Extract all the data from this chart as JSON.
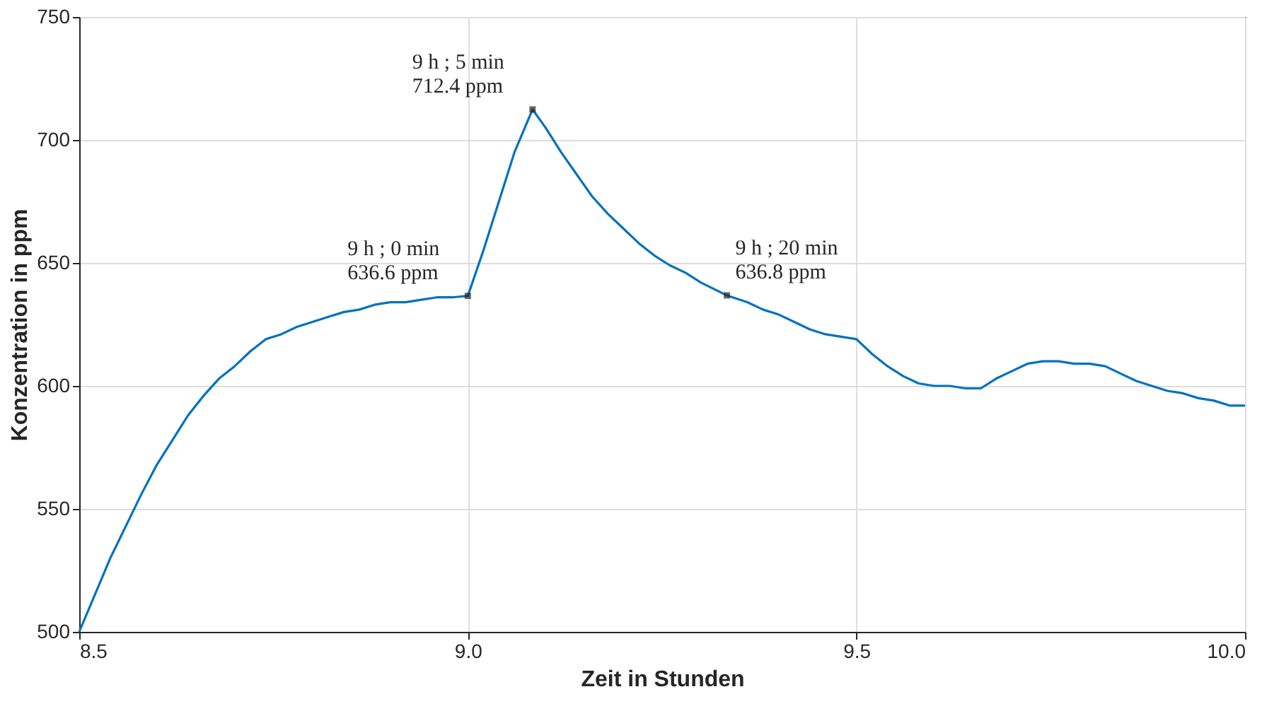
{
  "chart_data": {
    "type": "line",
    "xlabel": "Zeit in Stunden",
    "ylabel": "Konzentration in ppm",
    "x": [
      8.5,
      8.52,
      8.54,
      8.56,
      8.58,
      8.6,
      8.62,
      8.64,
      8.66,
      8.68,
      8.7,
      8.72,
      8.74,
      8.76,
      8.78,
      8.8,
      8.82,
      8.84,
      8.86,
      8.88,
      8.9,
      8.92,
      8.94,
      8.96,
      8.98,
      9.0,
      9.02,
      9.04,
      9.06,
      9.0833,
      9.1,
      9.12,
      9.14,
      9.16,
      9.18,
      9.2,
      9.22,
      9.24,
      9.26,
      9.28,
      9.3,
      9.3333,
      9.36,
      9.38,
      9.4,
      9.42,
      9.44,
      9.46,
      9.5,
      9.52,
      9.54,
      9.56,
      9.58,
      9.6,
      9.62,
      9.64,
      9.66,
      9.68,
      9.7,
      9.72,
      9.74,
      9.76,
      9.78,
      9.8,
      9.82,
      9.84,
      9.86,
      9.88,
      9.9,
      9.92,
      9.94,
      9.96,
      9.98,
      10.0
    ],
    "series": [
      {
        "color": "#0072bd",
        "values": [
          500,
          515,
          530,
          543,
          556,
          568,
          578,
          588,
          596,
          603,
          608,
          614,
          619,
          621,
          624,
          626,
          628,
          630,
          631,
          633,
          634,
          634,
          635,
          636,
          636,
          636.6,
          655,
          675,
          695,
          712.4,
          705,
          695,
          686,
          677,
          670,
          664,
          658,
          653,
          649,
          646,
          642,
          636.8,
          634,
          631,
          629,
          626,
          623,
          621,
          619,
          613,
          608,
          604,
          601,
          600,
          600,
          599,
          599,
          603,
          606,
          609,
          610,
          610,
          609,
          609,
          608,
          605,
          602,
          600,
          598,
          597,
          595,
          594,
          592,
          592
        ]
      }
    ],
    "xlim": [
      8.5,
      10
    ],
    "ylim": [
      500,
      750
    ],
    "xticks": [
      8.5,
      {
        "value": 9,
        "label": "9.0"
      },
      9.5,
      {
        "value": 10,
        "label": "10.0"
      }
    ],
    "yticks": [
      500,
      550,
      600,
      650,
      700,
      750
    ],
    "grid": true,
    "line_style": "solid",
    "marker": "none",
    "annotations": [
      {
        "text": "9 h ; 0 min\n636.6 ppm",
        "x": 9.0,
        "y": 636.6
      },
      {
        "text": "9 h ; 5 min\n712.4 ppm",
        "x": 9.0833,
        "y": 712.4
      },
      {
        "text": "9 h ; 20 min\n636.8 ppm",
        "x": 9.3333,
        "y": 636.8
      }
    ]
  }
}
